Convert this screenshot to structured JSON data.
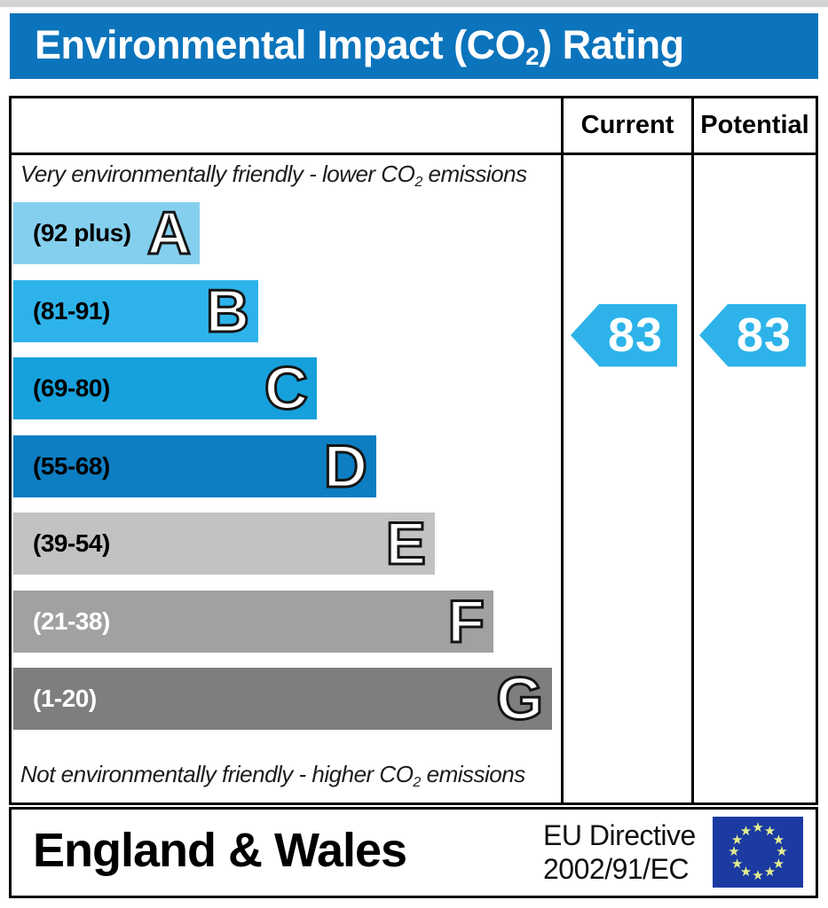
{
  "title": {
    "pre": "Environmental Impact (CO",
    "sub": "2",
    "post": ") Rating"
  },
  "header": {
    "current": "Current",
    "potential": "Potential"
  },
  "notes": {
    "top": {
      "pre": "Very environmentally friendly - lower CO",
      "sub": "2",
      "post": " emissions"
    },
    "bottom": {
      "pre": "Not environmentally friendly - higher CO",
      "sub": "2",
      "post": " emissions"
    }
  },
  "bands": [
    {
      "letter": "A",
      "range_label": "(92 plus)",
      "min": 92,
      "max": 100,
      "color": "#85cfee",
      "label_color": "#000000"
    },
    {
      "letter": "B",
      "range_label": "(81-91)",
      "min": 81,
      "max": 91,
      "color": "#2db3ea",
      "label_color": "#000000"
    },
    {
      "letter": "C",
      "range_label": "(69-80)",
      "min": 69,
      "max": 80,
      "color": "#16a1dc",
      "label_color": "#000000"
    },
    {
      "letter": "D",
      "range_label": "(55-68)",
      "min": 55,
      "max": 68,
      "color": "#0d7ec2",
      "label_color": "#000000"
    },
    {
      "letter": "E",
      "range_label": "(39-54)",
      "min": 39,
      "max": 54,
      "color": "#c2c2c2",
      "label_color": "#000000"
    },
    {
      "letter": "F",
      "range_label": "(21-38)",
      "min": 21,
      "max": 38,
      "color": "#a1a1a1",
      "label_color": "#ffffff"
    },
    {
      "letter": "G",
      "range_label": "(1-20)",
      "min": 1,
      "max": 20,
      "color": "#7e7e7e",
      "label_color": "#ffffff"
    }
  ],
  "ratings": {
    "current": "83",
    "potential": "83",
    "arrow_color": "#2db3ea"
  },
  "footer": {
    "region": "England & Wales",
    "directive_line1": "EU Directive",
    "directive_line2": "2002/91/EC",
    "flag": {
      "background": "#1b3aa2",
      "star_color": "#e2ee8e",
      "star_count": 12
    }
  },
  "chart_data": {
    "type": "bar",
    "title": "Environmental Impact (CO2) Rating",
    "categories": [
      "A",
      "B",
      "C",
      "D",
      "E",
      "F",
      "G"
    ],
    "band_ranges": [
      "92 plus",
      "81-91",
      "69-80",
      "55-68",
      "39-54",
      "21-38",
      "1-20"
    ],
    "band_colors": [
      "#85cfee",
      "#2db3ea",
      "#16a1dc",
      "#0d7ec2",
      "#c2c2c2",
      "#a1a1a1",
      "#7e7e7e"
    ],
    "series": [
      {
        "name": "Current",
        "values": [
          83
        ],
        "band": "B"
      },
      {
        "name": "Potential",
        "values": [
          83
        ],
        "band": "B"
      }
    ],
    "scale": {
      "min": 1,
      "max": 100
    },
    "annotations": [
      "Very environmentally friendly - lower CO2 emissions",
      "Not environmentally friendly - higher CO2 emissions"
    ],
    "legend_position": "none",
    "grid": false,
    "footer": "England & Wales — EU Directive 2002/91/EC"
  }
}
